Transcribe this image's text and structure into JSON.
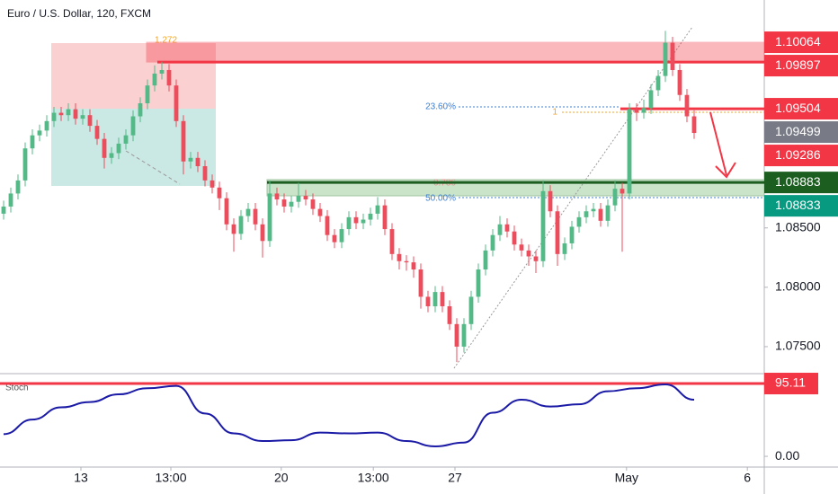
{
  "chart_data": {
    "type": "candlestick",
    "title": "Euro / U.S. Dollar, 120, FXCM",
    "up_color": "#53b987",
    "down_color": "#eb4d5c",
    "xlim": [
      -0.5,
      105.75
    ],
    "xticks": [
      {
        "value": 10.75,
        "label": "13"
      },
      {
        "value": 23.25,
        "label": "13:00"
      },
      {
        "value": 38.6,
        "label": "20"
      },
      {
        "value": 51.4,
        "label": "13:00"
      },
      {
        "value": 62.75,
        "label": "27"
      },
      {
        "value": 86.6,
        "label": "May"
      },
      {
        "value": 103.4,
        "label": "6"
      }
    ],
    "ylim": [
      1.0728,
      1.1042
    ],
    "yticks": [
      {
        "value": 1.085,
        "label": "1.08500"
      },
      {
        "value": 1.08,
        "label": "1.08000"
      },
      {
        "value": 1.075,
        "label": "1.07500"
      }
    ],
    "candles": [
      [
        1.0862,
        1.0873,
        1.0857,
        1.0868
      ],
      [
        1.0868,
        1.0884,
        1.0863,
        1.0879
      ],
      [
        1.0879,
        1.0895,
        1.0874,
        1.089
      ],
      [
        1.089,
        1.0922,
        1.0885,
        1.0917
      ],
      [
        1.0917,
        1.0933,
        1.0912,
        1.0928
      ],
      [
        1.0928,
        1.0937,
        1.0923,
        1.0932
      ],
      [
        1.0932,
        1.0945,
        1.0927,
        1.094
      ],
      [
        1.094,
        1.0952,
        1.0935,
        1.0947
      ],
      [
        1.0947,
        1.0952,
        1.094,
        1.0945
      ],
      [
        1.0945,
        1.0955,
        1.094,
        1.095
      ],
      [
        1.095,
        1.0955,
        1.0937,
        1.0942
      ],
      [
        1.0942,
        1.095,
        1.0937,
        1.0945
      ],
      [
        1.0945,
        1.095,
        1.0931,
        1.0936
      ],
      [
        1.0936,
        1.0941,
        1.092,
        1.0925
      ],
      [
        1.0925,
        1.093,
        1.09,
        1.0909
      ],
      [
        1.0909,
        1.0918,
        1.0904,
        1.0913
      ],
      [
        1.0913,
        1.0926,
        1.0908,
        1.0921
      ],
      [
        1.0921,
        1.0933,
        1.0916,
        1.0928
      ],
      [
        1.0928,
        1.0949,
        1.0923,
        1.0944
      ],
      [
        1.0944,
        1.096,
        1.0939,
        1.0955
      ],
      [
        1.0955,
        1.0975,
        1.095,
        1.097
      ],
      [
        1.097,
        1.0987,
        1.0965,
        1.098
      ],
      [
        1.098,
        1.099,
        1.0975,
        1.0983
      ],
      [
        1.0983,
        1.0988,
        1.0965,
        1.097
      ],
      [
        1.097,
        1.0975,
        1.0935,
        1.094
      ],
      [
        1.094,
        1.0945,
        1.0895,
        1.0906
      ],
      [
        1.0906,
        1.0914,
        1.09,
        1.0909
      ],
      [
        1.0909,
        1.0914,
        1.0897,
        1.0902
      ],
      [
        1.0902,
        1.0907,
        1.0885,
        1.089
      ],
      [
        1.089,
        1.0895,
        1.0879,
        1.0884
      ],
      [
        1.0884,
        1.0889,
        1.0865,
        1.0875
      ],
      [
        1.0875,
        1.088,
        1.0848,
        1.0853
      ],
      [
        1.0853,
        1.0858,
        1.083,
        1.0845
      ],
      [
        1.0845,
        1.0865,
        1.084,
        1.086
      ],
      [
        1.086,
        1.0871,
        1.0855,
        1.0866
      ],
      [
        1.0866,
        1.0871,
        1.0848,
        1.0853
      ],
      [
        1.0853,
        1.0858,
        1.0825,
        1.0839
      ],
      [
        1.0839,
        1.089,
        1.0834,
        1.0879
      ],
      [
        1.0879,
        1.0884,
        1.0869,
        1.0874
      ],
      [
        1.0874,
        1.0879,
        1.0863,
        1.0868
      ],
      [
        1.0868,
        1.0877,
        1.0863,
        1.0872
      ],
      [
        1.0872,
        1.0888,
        1.0867,
        1.0877
      ],
      [
        1.0877,
        1.0882,
        1.0869,
        1.0874
      ],
      [
        1.0874,
        1.0879,
        1.0861,
        1.0866
      ],
      [
        1.0866,
        1.0871,
        1.0855,
        1.086
      ],
      [
        1.086,
        1.0865,
        1.0839,
        1.0844
      ],
      [
        1.0844,
        1.0849,
        1.0833,
        1.0838
      ],
      [
        1.0838,
        1.0854,
        1.0833,
        1.0849
      ],
      [
        1.0849,
        1.0864,
        1.0844,
        1.0859
      ],
      [
        1.0859,
        1.0864,
        1.0849,
        1.0854
      ],
      [
        1.0854,
        1.0862,
        1.0849,
        1.0857
      ],
      [
        1.0857,
        1.0867,
        1.0852,
        1.0862
      ],
      [
        1.0862,
        1.0876,
        1.0857,
        1.0869
      ],
      [
        1.0869,
        1.0874,
        1.0844,
        1.0849
      ],
      [
        1.0849,
        1.0854,
        1.0823,
        1.0828
      ],
      [
        1.0828,
        1.0833,
        1.0815,
        1.0822
      ],
      [
        1.0822,
        1.0827,
        1.0814,
        1.0821
      ],
      [
        1.0821,
        1.0826,
        1.0808,
        1.0815
      ],
      [
        1.0815,
        1.082,
        1.0782,
        1.0792
      ],
      [
        1.0792,
        1.0797,
        1.0779,
        1.0784
      ],
      [
        1.0784,
        1.0801,
        1.0779,
        1.0796
      ],
      [
        1.0796,
        1.0801,
        1.0779,
        1.0784
      ],
      [
        1.0784,
        1.0789,
        1.0764,
        1.0769
      ],
      [
        1.0769,
        1.0774,
        1.0737,
        1.075
      ],
      [
        1.075,
        1.0774,
        1.0745,
        1.0769
      ],
      [
        1.0769,
        1.0797,
        1.0764,
        1.0792
      ],
      [
        1.0792,
        1.082,
        1.0787,
        1.0815
      ],
      [
        1.0815,
        1.0836,
        1.081,
        1.0831
      ],
      [
        1.0831,
        1.0849,
        1.0826,
        1.0844
      ],
      [
        1.0844,
        1.086,
        1.0839,
        1.0853
      ],
      [
        1.0853,
        1.0858,
        1.0842,
        1.0847
      ],
      [
        1.0847,
        1.0852,
        1.0831,
        1.0836
      ],
      [
        1.0836,
        1.0841,
        1.0826,
        1.0831
      ],
      [
        1.0831,
        1.0836,
        1.0818,
        1.0826
      ],
      [
        1.0826,
        1.0831,
        1.0812,
        1.0822
      ],
      [
        1.0822,
        1.089,
        1.0817,
        1.0881
      ],
      [
        1.0881,
        1.0886,
        1.0859,
        1.0864
      ],
      [
        1.0864,
        1.0869,
        1.0818,
        1.0828
      ],
      [
        1.0828,
        1.0842,
        1.0823,
        1.0837
      ],
      [
        1.0837,
        1.0856,
        1.0832,
        1.0851
      ],
      [
        1.0851,
        1.0864,
        1.0846,
        1.0859
      ],
      [
        1.0859,
        1.0869,
        1.0854,
        1.0864
      ],
      [
        1.0864,
        1.0871,
        1.0859,
        1.0866
      ],
      [
        1.0866,
        1.0871,
        1.0851,
        1.0856
      ],
      [
        1.0856,
        1.0874,
        1.0851,
        1.0869
      ],
      [
        1.0869,
        1.089,
        1.0864,
        1.0883
      ],
      [
        1.0883,
        1.0888,
        1.083,
        1.0879
      ],
      [
        1.0879,
        1.0955,
        1.0874,
        1.095
      ],
      [
        1.095,
        1.0955,
        1.094,
        1.0947
      ],
      [
        1.0947,
        1.0958,
        1.0942,
        1.0951
      ],
      [
        1.0951,
        1.0971,
        1.0946,
        1.0966
      ],
      [
        1.0966,
        1.0983,
        1.0961,
        1.0978
      ],
      [
        1.0978,
        1.1016,
        1.0973,
        1.1006
      ],
      [
        1.1006,
        1.1011,
        1.0978,
        1.0983
      ],
      [
        1.0983,
        1.0988,
        1.0957,
        1.0962
      ],
      [
        1.0962,
        1.0967,
        1.0939,
        1.0944
      ],
      [
        1.0944,
        1.0949,
        1.0925,
        1.093
      ]
    ],
    "price_labels": [
      {
        "value": 1.10064,
        "color": "#f23645"
      },
      {
        "value": 1.09897,
        "color": "#f23645"
      },
      {
        "value": 1.09504,
        "color": "#f23645"
      },
      {
        "value": 1.09499,
        "color": "#787b86"
      },
      {
        "value": 1.09286,
        "color": "#f23645"
      },
      {
        "value": 1.08883,
        "color": "#1b5e20"
      },
      {
        "value": 1.08833,
        "color": "#089981"
      }
    ],
    "annotations": [
      "1.272",
      "23.60%",
      "1",
      "0.786",
      "50.00%"
    ],
    "stoch": {
      "label": "Stoch",
      "color": "#1a1aa6",
      "ylim": [
        -14,
        105.7
      ],
      "yticks": [
        {
          "value": 0,
          "label": "0.00"
        }
      ],
      "level": 95.11,
      "level_color": "#f23645",
      "x": [
        0,
        4,
        8,
        12,
        16,
        20,
        24,
        28,
        32,
        36,
        40,
        44,
        48,
        52,
        56,
        60,
        64,
        68,
        72,
        76,
        80,
        84,
        88,
        92,
        96
      ],
      "values": [
        29,
        48,
        64,
        71,
        81,
        89,
        92,
        56,
        30,
        20,
        21,
        31,
        30,
        31,
        20,
        13,
        18,
        57,
        74,
        65,
        68,
        85,
        89,
        94,
        74
      ]
    }
  }
}
